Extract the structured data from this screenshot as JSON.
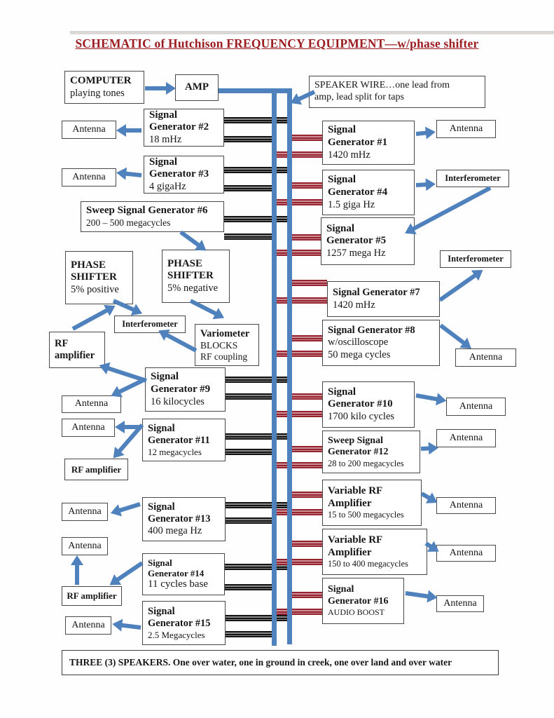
{
  "title": "SCHEMATIC of Hutchison FREQUENCY EQUIPMENT—w/phase shifter",
  "footer": "THREE (3) SPEAKERS. One over water, one in ground in creek, one over land and over water",
  "colors": {
    "wire_blue": "#4f81bd",
    "tap_black": "#141414",
    "tap_red": "#96222f",
    "title_red": "#9b1c21"
  },
  "nodes": {
    "computer": [
      "COMPUTER",
      "playing tones"
    ],
    "amp": [
      "AMP"
    ],
    "speaker_wire": [
      "SPEAKER WIRE…one lead from",
      "amp, lead split for taps"
    ],
    "sg2": [
      "Signal",
      "Generator #2",
      "18 mHz"
    ],
    "ant_sg2": [
      "Antenna"
    ],
    "sg3": [
      "Signal",
      "Generator #3",
      "4 gigaHz"
    ],
    "ant_sg3": [
      "Antenna"
    ],
    "ssg6": [
      "Sweep Signal Generator #6",
      "200 – 500  megacycles"
    ],
    "ps_pos": [
      "PHASE",
      "SHIFTER",
      "5% positive"
    ],
    "ps_neg": [
      "PHASE",
      "SHIFTER",
      "5% negative"
    ],
    "interf_left": [
      "Interferometer"
    ],
    "variometer": [
      "Variometer",
      "BLOCKS",
      "RF coupling"
    ],
    "rf_amp1": [
      "RF",
      "amplifier"
    ],
    "sg9": [
      "Signal",
      "Generator #9",
      "16 kilocycles"
    ],
    "ant_sg9": [
      "Antenna"
    ],
    "ant_sg11": [
      "Antenna"
    ],
    "sg11": [
      "Signal",
      "Generator #11",
      "12 megacycles"
    ],
    "rf_amp2": [
      "RF amplifier"
    ],
    "sg13": [
      "Signal",
      "Generator #13",
      "400 mega Hz"
    ],
    "ant_sg13": [
      "Antenna"
    ],
    "ant_rf3": [
      "Antenna"
    ],
    "sg14": [
      "Signal",
      "Generator #14",
      "11 cycles base"
    ],
    "rf_amp3": [
      "RF amplifier"
    ],
    "sg15": [
      "Signal",
      "Generator #15",
      "2.5 Megacycles"
    ],
    "ant_sg15": [
      "Antenna"
    ],
    "sg1": [
      "Signal",
      "Generator #1",
      "1420 mHz"
    ],
    "ant_sg1": [
      "Antenna"
    ],
    "sg4": [
      "Signal",
      "Generator #4",
      "1.5 giga Hz"
    ],
    "interf_1": [
      "Interferometer"
    ],
    "sg5": [
      "Signal",
      "Generator #5",
      "1257 mega Hz"
    ],
    "interf_2": [
      "Interferometer"
    ],
    "sg7": [
      "Signal Generator #7",
      "1420 mHz"
    ],
    "sg8": [
      "Signal Generator #8",
      "w/oscilloscope",
      "50 mega cycles"
    ],
    "ant_sg8": [
      "Antenna"
    ],
    "sg10": [
      "Signal",
      "Generator #10",
      "1700 kilo cycles"
    ],
    "ant_sg10": [
      "Antenna"
    ],
    "ssg12": [
      "Sweep Signal",
      "Generator #12",
      "28 to 200 megacycles"
    ],
    "ant_ssg12": [
      "Antenna"
    ],
    "vrf1": [
      "Variable RF",
      "Amplifier",
      "15 to 500 megacycles"
    ],
    "ant_vrf1": [
      "Antenna"
    ],
    "vrf2": [
      "Variable RF",
      "Amplifier",
      "150 to 400 megacycles"
    ],
    "ant_vrf2": [
      "Antenna"
    ],
    "sg16": [
      "Signal",
      "Generator #16",
      "AUDIO BOOST"
    ],
    "ant_sg16": [
      "Antenna"
    ]
  }
}
